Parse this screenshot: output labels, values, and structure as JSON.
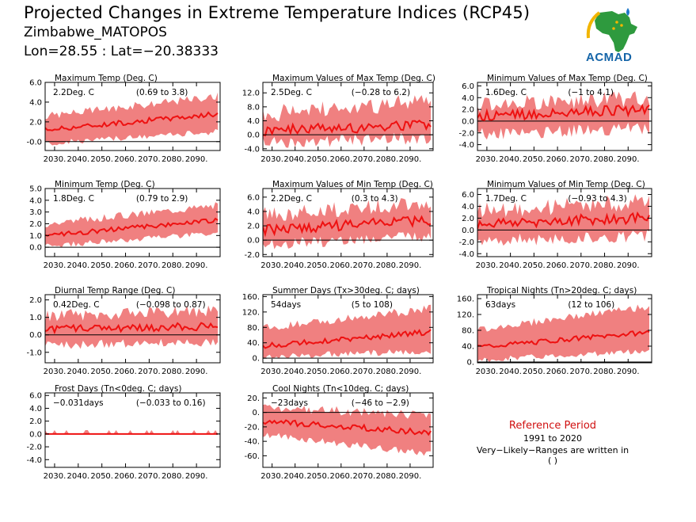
{
  "header": {
    "title": "Projected Changes in Extreme Temperature Indices (RCP45)",
    "station": "Zimbabwe_MATOPOS",
    "coords": "Lon=28.55 : Lat=−20.38333"
  },
  "logo": {
    "text": "ACMAD",
    "icon": "africa-map-logo"
  },
  "reference": {
    "title": "Reference Period",
    "years": "1991 to 2020",
    "note": "Very−Likely−Ranges are written in ( )"
  },
  "colors": {
    "band": "#f08080",
    "line": "#ee1111",
    "zero": "#000000",
    "accent": "#d01010"
  },
  "chart_data": [
    {
      "type": "area",
      "title": "Maximum Temp (Deg. C)",
      "stat": "2.2Deg. C",
      "range": "(0.69 to 3.8)",
      "ylim": [
        -0.9,
        6.0
      ],
      "yticks": [
        "-0.0",
        "2.0",
        "4.0",
        "6.0"
      ],
      "ytick_values": [
        0,
        2,
        4,
        6
      ],
      "xticks": [
        "2030.",
        "2040.",
        "2050.",
        "2060.",
        "2070.",
        "2080.",
        "2090."
      ],
      "x_range": [
        2026,
        2100
      ],
      "series": {
        "median_start": 1.2,
        "median_end": 2.8,
        "lower_start": -0.2,
        "lower_end": 1.0,
        "upper_start": 2.6,
        "upper_end": 4.6,
        "noise": 0.25
      }
    },
    {
      "type": "area",
      "title": "Maximum Values of Max Temp (Deg. C)",
      "stat": "2.5Deg. C",
      "range": "(−0.28 to 6.2)",
      "ylim": [
        -4.5,
        15.0
      ],
      "yticks": [
        "-4.0",
        "0.0",
        "4.0",
        "8.0",
        "12.0"
      ],
      "ytick_values": [
        -4,
        0,
        4,
        8,
        12
      ],
      "xticks": [
        "2030.",
        "2040.",
        "2050.",
        "2060.",
        "2070.",
        "2080.",
        "2090."
      ],
      "x_range": [
        2026,
        2100
      ],
      "series": {
        "median_start": 1.2,
        "median_end": 3.0,
        "lower_start": -2.0,
        "lower_end": -1.0,
        "upper_start": 6.0,
        "upper_end": 9.5,
        "noise": 1.6
      }
    },
    {
      "type": "area",
      "title": "Minimum Values of Max Temp (Deg. C)",
      "stat": "1.6Deg. C",
      "range": "(−1 to 4.1)",
      "ylim": [
        -5.0,
        6.6
      ],
      "yticks": [
        "-4.0",
        "-2.0",
        "0.0",
        "2.0",
        "4.0",
        "6.0"
      ],
      "ytick_values": [
        -4,
        -2,
        0,
        2,
        4,
        6
      ],
      "xticks": [
        "2030.",
        "2040.",
        "2050.",
        "2060.",
        "2070.",
        "2080.",
        "2090."
      ],
      "x_range": [
        2026,
        2100
      ],
      "series": {
        "median_start": 0.8,
        "median_end": 2.0,
        "lower_start": -2.2,
        "lower_end": -1.2,
        "upper_start": 2.8,
        "upper_end": 4.0,
        "noise": 0.9
      }
    },
    {
      "type": "area",
      "title": "Minimum Temp (Deg. C)",
      "stat": "1.8Deg. C",
      "range": "(0.79 to 2.9)",
      "ylim": [
        -0.8,
        5.0
      ],
      "yticks": [
        "0.0",
        "1.0",
        "2.0",
        "3.0",
        "4.0",
        "5.0"
      ],
      "ytick_values": [
        0,
        1,
        2,
        3,
        4,
        5
      ],
      "xticks": [
        "2030.",
        "2040.",
        "2050.",
        "2060.",
        "2070.",
        "2080.",
        "2090."
      ],
      "x_range": [
        2026,
        2100
      ],
      "series": {
        "median_start": 1.0,
        "median_end": 2.3,
        "lower_start": 0.1,
        "lower_end": 1.2,
        "upper_start": 2.0,
        "upper_end": 3.6,
        "noise": 0.2
      }
    },
    {
      "type": "area",
      "title": "Maximum Values of Min Temp (Deg. C)",
      "stat": "2.2Deg. C",
      "range": "(0.3 to 4.3)",
      "ylim": [
        -2.3,
        7.2
      ],
      "yticks": [
        "-2.0",
        "0.0",
        "2.0",
        "4.0",
        "6.0"
      ],
      "ytick_values": [
        -2,
        0,
        2,
        4,
        6
      ],
      "xticks": [
        "2030.",
        "2040.",
        "2050.",
        "2060.",
        "2070.",
        "2080.",
        "2090."
      ],
      "x_range": [
        2026,
        2100
      ],
      "series": {
        "median_start": 1.4,
        "median_end": 2.8,
        "lower_start": -0.6,
        "lower_end": 0.6,
        "upper_start": 3.5,
        "upper_end": 5.2,
        "noise": 0.7
      }
    },
    {
      "type": "area",
      "title": "Minimum Values of Min Temp (Deg. C)",
      "stat": "1.7Deg. C",
      "range": "(−0.93 to 4.3)",
      "ylim": [
        -4.5,
        7.0
      ],
      "yticks": [
        "-4.0",
        "-2.0",
        "0.0",
        "2.0",
        "4.0",
        "6.0"
      ],
      "ytick_values": [
        -4,
        -2,
        0,
        2,
        4,
        6
      ],
      "xticks": [
        "2030.",
        "2040.",
        "2050.",
        "2060.",
        "2070.",
        "2080.",
        "2090."
      ],
      "x_range": [
        2026,
        2100
      ],
      "series": {
        "median_start": 1.0,
        "median_end": 2.1,
        "lower_start": -1.8,
        "lower_end": -1.0,
        "upper_start": 3.2,
        "upper_end": 4.8,
        "noise": 0.9
      }
    },
    {
      "type": "area",
      "title": "Diurnal Temp Range (Deg. C)",
      "stat": "0.42Deg. C",
      "range": "(−0.098 to 0.87)",
      "ylim": [
        -1.6,
        2.3
      ],
      "yticks": [
        "-1.0",
        "0.0",
        "1.0",
        "2.0"
      ],
      "ytick_values": [
        -1,
        0,
        1,
        2
      ],
      "xticks": [
        "2030.",
        "2040.",
        "2050.",
        "2060.",
        "2070.",
        "2080.",
        "2090."
      ],
      "x_range": [
        2026,
        2100
      ],
      "series": {
        "median_start": 0.3,
        "median_end": 0.5,
        "lower_start": -0.6,
        "lower_end": -0.4,
        "upper_start": 1.1,
        "upper_end": 1.4,
        "noise": 0.22
      }
    },
    {
      "type": "area",
      "title": "Summer Days (Tx>30deg. C; days)",
      "stat": "54days",
      "range": "(5 to 108)",
      "ylim": [
        -12,
        165
      ],
      "yticks": [
        "0.",
        "40.",
        "80.",
        "120.",
        "160."
      ],
      "ytick_values": [
        0,
        40,
        80,
        120,
        160
      ],
      "xticks": [
        "2030.",
        "2040.",
        "2050.",
        "2060.",
        "2070.",
        "2080.",
        "2090."
      ],
      "x_range": [
        2026,
        2100
      ],
      "series": {
        "median_start": 32,
        "median_end": 68,
        "lower_start": 4,
        "lower_end": 18,
        "upper_start": 78,
        "upper_end": 128,
        "noise": 7
      }
    },
    {
      "type": "area",
      "title": "Tropical Nights (Tn>20deg. C; days)",
      "stat": "63days",
      "range": "(12 to 106)",
      "ylim": [
        -2,
        170
      ],
      "yticks": [
        "0.",
        "40.",
        "80.",
        "120.",
        "160."
      ],
      "ytick_values": [
        0,
        40,
        80,
        120,
        160
      ],
      "xticks": [
        "2030.",
        "2040.",
        "2050.",
        "2060.",
        "2070.",
        "2080.",
        "2090."
      ],
      "x_range": [
        2026,
        2100
      ],
      "series": {
        "median_start": 38,
        "median_end": 75,
        "lower_start": 5,
        "lower_end": 28,
        "upper_start": 82,
        "upper_end": 140,
        "noise": 6
      }
    },
    {
      "type": "area",
      "title": "Frost Days (Tn<0deg. C; days)",
      "stat": "−0.031days",
      "range": "(−0.033 to 0.16)",
      "ylim": [
        -5.2,
        6.4
      ],
      "yticks": [
        "-4.0",
        "-2.0",
        "0.0",
        "2.0",
        "4.0",
        "6.0"
      ],
      "ytick_values": [
        -4,
        -2,
        0,
        2,
        4,
        6
      ],
      "xticks": [
        "2030.",
        "2040.",
        "2050.",
        "2060.",
        "2070.",
        "2080.",
        "2090."
      ],
      "x_range": [
        2026,
        2100
      ],
      "series": {
        "median_start": 0.0,
        "median_end": 0.0,
        "lower_start": 0.0,
        "lower_end": 0.0,
        "upper_start": 0.15,
        "upper_end": 0.15,
        "noise": 0.0,
        "spikes": true
      }
    },
    {
      "type": "area",
      "title": "Cool Nights (Tn<10deg. C; days)",
      "stat": "−23days",
      "range": "(−46 to −2.9)",
      "ylim": [
        -76,
        27
      ],
      "yticks": [
        "-60.",
        "-40.",
        "-20.",
        "0.",
        "20."
      ],
      "ytick_values": [
        -60,
        -40,
        -20,
        0,
        20
      ],
      "xticks": [
        "2030.",
        "2040.",
        "2050.",
        "2060.",
        "2070.",
        "2080.",
        "2090."
      ],
      "x_range": [
        2026,
        2100
      ],
      "series": {
        "median_start": -12,
        "median_end": -28,
        "lower_start": -30,
        "lower_end": -58,
        "upper_start": 8,
        "upper_end": -5,
        "noise": 4
      }
    }
  ]
}
